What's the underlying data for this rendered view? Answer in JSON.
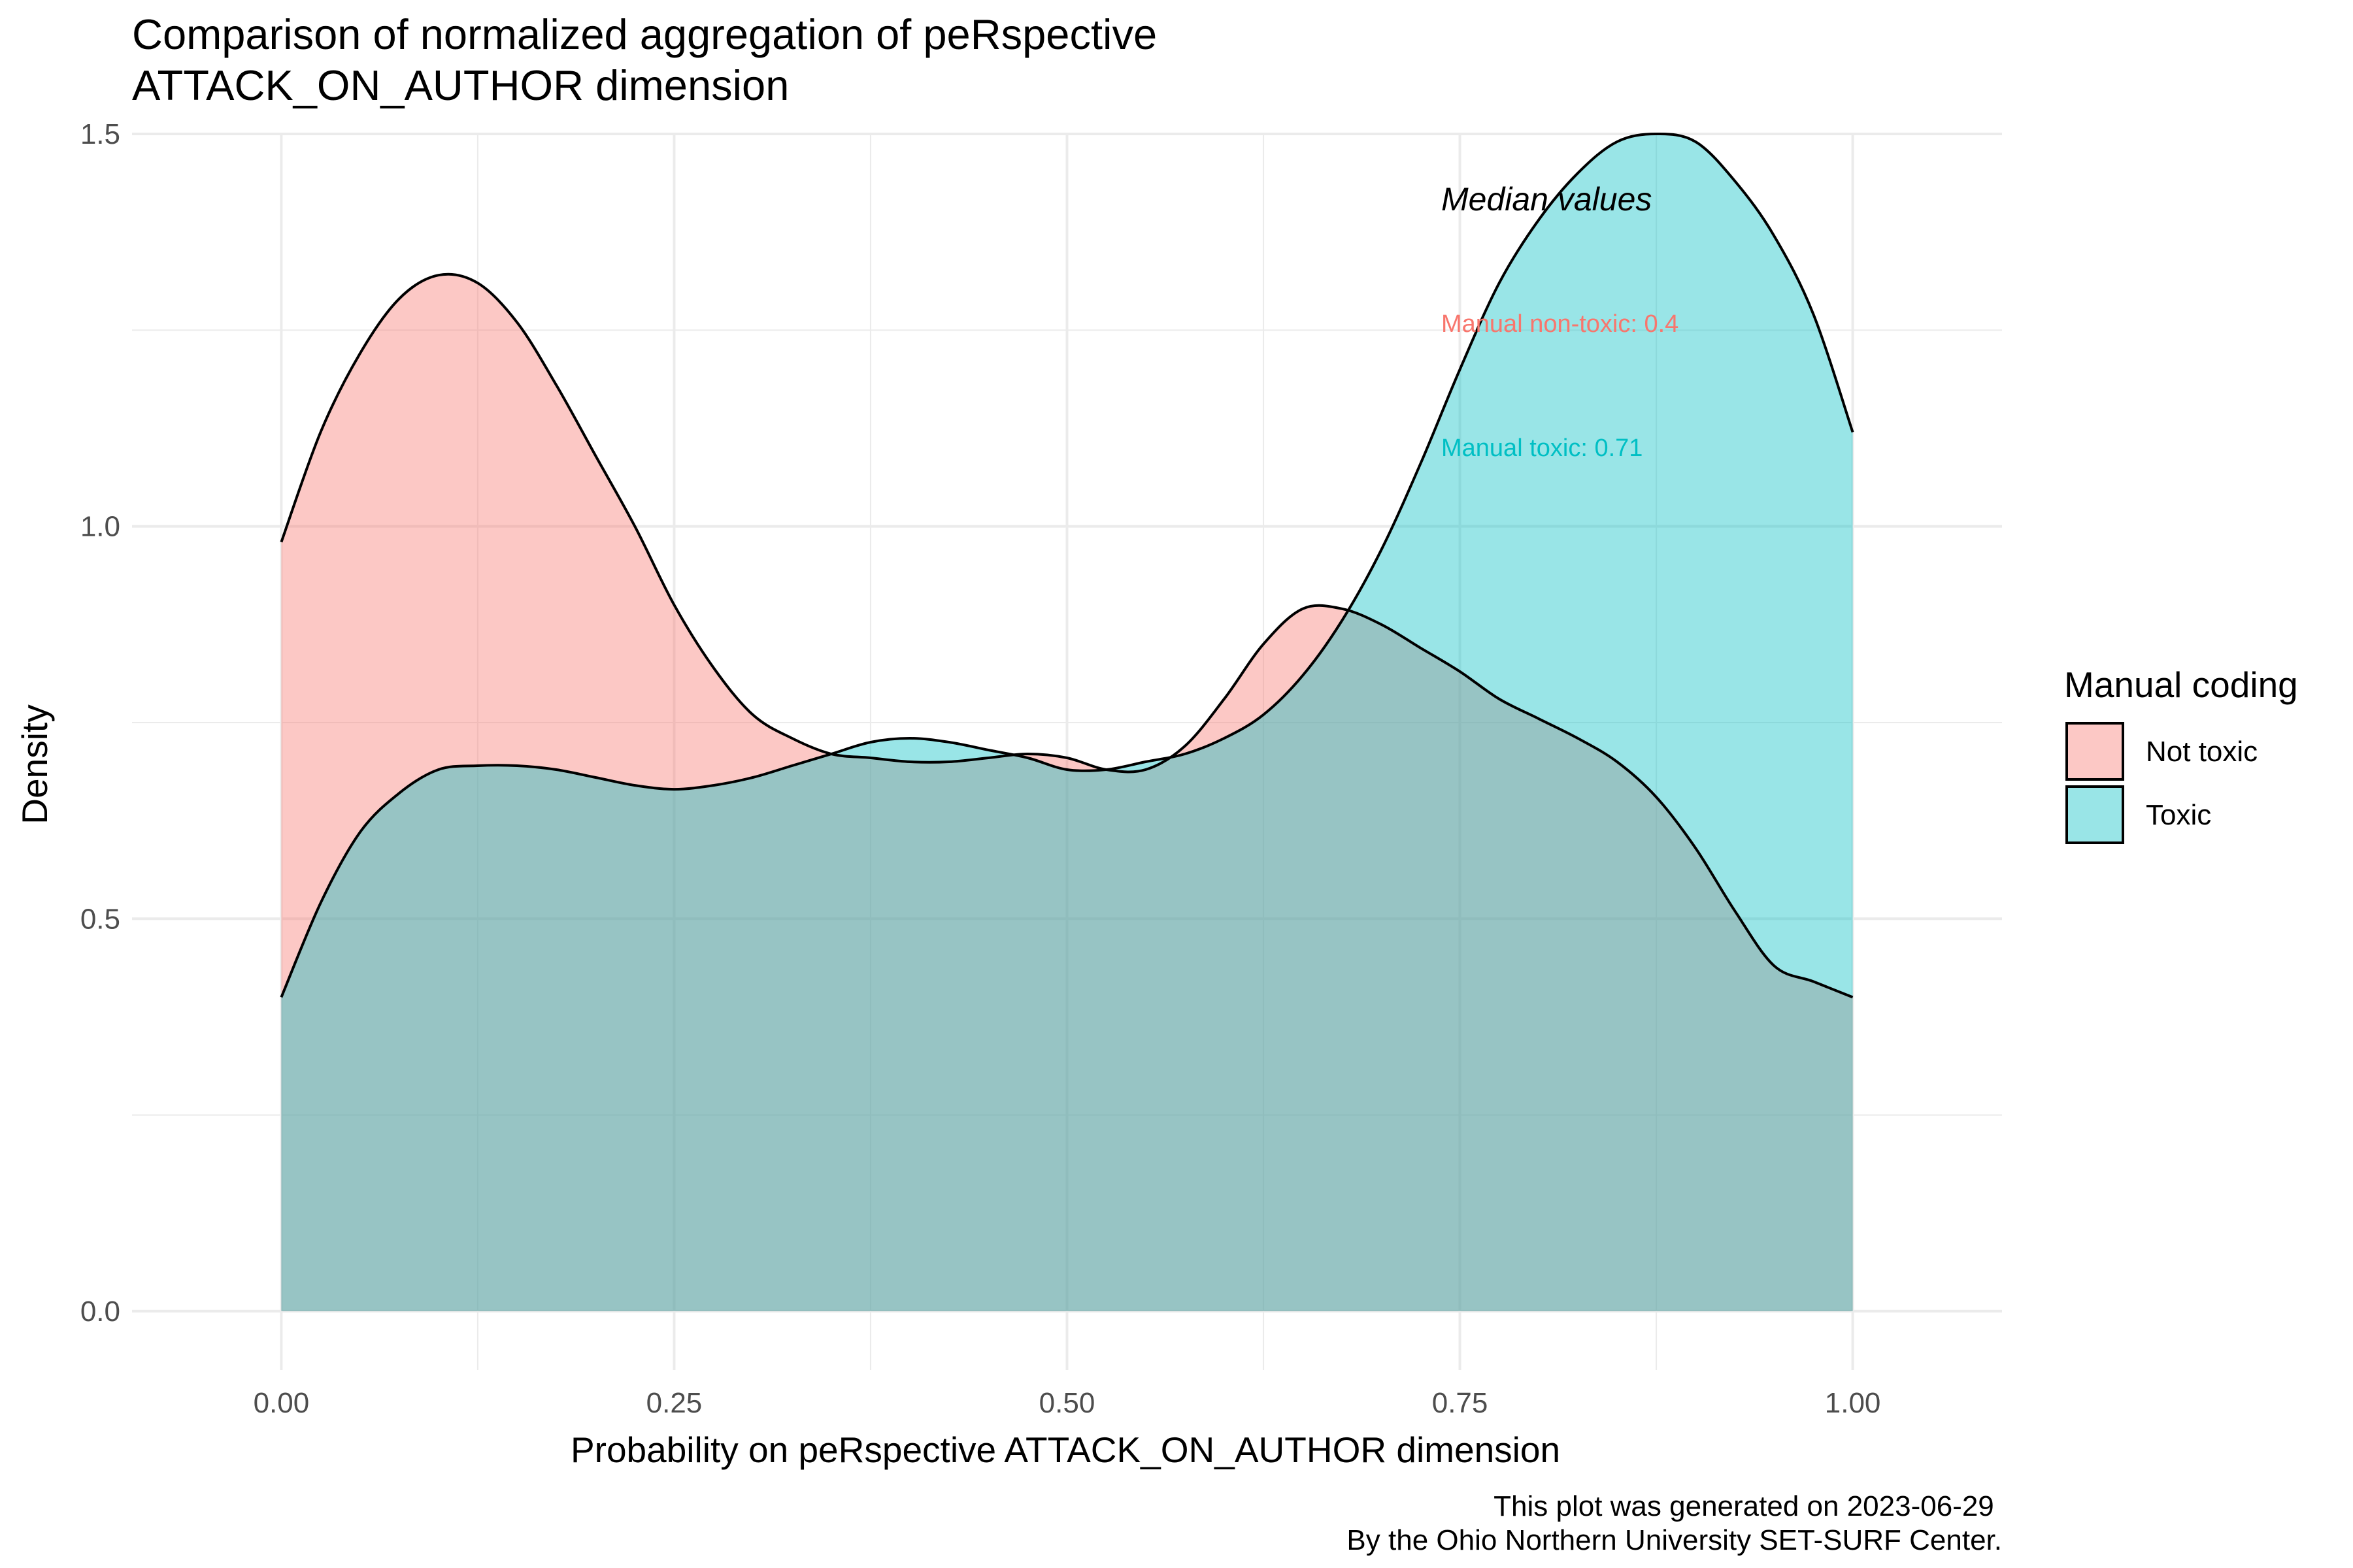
{
  "chart_data": {
    "type": "area",
    "title": "Comparison of normalized aggregation of peRspective\n ATTACK_ON_AUTHOR dimension",
    "xlabel": "Probability on peRspective ATTACK_ON_AUTHOR dimension",
    "ylabel": "Density",
    "xlim": [
      -0.095,
      1.095
    ],
    "ylim": [
      -0.075,
      1.5
    ],
    "x_ticks": [
      0,
      0.25,
      0.5,
      0.75,
      1
    ],
    "x_tick_labels": [
      "0.00",
      "0.25",
      "0.50",
      "0.75",
      "1.00"
    ],
    "y_ticks": [
      0,
      0.5,
      1,
      1.5
    ],
    "y_tick_labels": [
      "0.0",
      "0.5",
      "1.0",
      "1.5"
    ],
    "grid": true,
    "legend": {
      "title": "Manual coding",
      "placement": "right"
    },
    "series": [
      {
        "name": "Not toxic",
        "fill": "#F8766D",
        "x": [
          0,
          0.025,
          0.05,
          0.075,
          0.1,
          0.125,
          0.15,
          0.175,
          0.2,
          0.225,
          0.25,
          0.275,
          0.3,
          0.325,
          0.35,
          0.375,
          0.4,
          0.425,
          0.45,
          0.475,
          0.5,
          0.525,
          0.55,
          0.575,
          0.6,
          0.625,
          0.65,
          0.675,
          0.7,
          0.725,
          0.75,
          0.775,
          0.8,
          0.825,
          0.85,
          0.875,
          0.9,
          0.925,
          0.95,
          0.975,
          1
        ],
        "values": [
          0.98,
          1.12,
          1.22,
          1.29,
          1.32,
          1.31,
          1.26,
          1.18,
          1.09,
          1.0,
          0.9,
          0.82,
          0.76,
          0.73,
          0.71,
          0.705,
          0.7,
          0.7,
          0.705,
          0.71,
          0.705,
          0.69,
          0.69,
          0.72,
          0.78,
          0.85,
          0.895,
          0.895,
          0.875,
          0.845,
          0.815,
          0.78,
          0.755,
          0.73,
          0.7,
          0.655,
          0.59,
          0.51,
          0.44,
          0.42,
          0.4
        ],
        "label_x": [
          0,
          0.05,
          0.1,
          0.15,
          0.2,
          0.25,
          0.3,
          0.35,
          0.4,
          0.45,
          0.5,
          0.55,
          0.6,
          0.65,
          0.7,
          0.75,
          0.8,
          0.85,
          0.9,
          0.95,
          1
        ]
      },
      {
        "name": "Toxic",
        "fill": "#00BFC4",
        "x": [
          0,
          0.025,
          0.05,
          0.075,
          0.1,
          0.125,
          0.15,
          0.175,
          0.2,
          0.225,
          0.25,
          0.275,
          0.3,
          0.325,
          0.35,
          0.375,
          0.4,
          0.425,
          0.45,
          0.475,
          0.5,
          0.525,
          0.55,
          0.575,
          0.6,
          0.625,
          0.65,
          0.675,
          0.7,
          0.725,
          0.75,
          0.775,
          0.8,
          0.825,
          0.85,
          0.875,
          0.9,
          0.925,
          0.95,
          0.975,
          1
        ],
        "values": [
          0.4,
          0.52,
          0.61,
          0.66,
          0.69,
          0.695,
          0.695,
          0.69,
          0.68,
          0.67,
          0.665,
          0.67,
          0.68,
          0.695,
          0.71,
          0.725,
          0.73,
          0.725,
          0.715,
          0.705,
          0.69,
          0.69,
          0.7,
          0.71,
          0.73,
          0.76,
          0.81,
          0.88,
          0.97,
          1.08,
          1.2,
          1.31,
          1.39,
          1.45,
          1.49,
          1.5,
          1.49,
          1.44,
          1.37,
          1.27,
          1.12
        ]
      }
    ],
    "annotations": {
      "heading": "Median values",
      "not_toxic": "Manual non-toxic: 0.4",
      "toxic": "Manual toxic: 0.71"
    },
    "caption": [
      "This plot was generated on 2023-06-29",
      "By the Ohio Northern University SET-SURF Center."
    ],
    "colors": {
      "not_toxic": "#F8766D",
      "toxic": "#00BFC4",
      "grid": "#EBEBEB",
      "axis_text": "#4D4D4D"
    }
  }
}
